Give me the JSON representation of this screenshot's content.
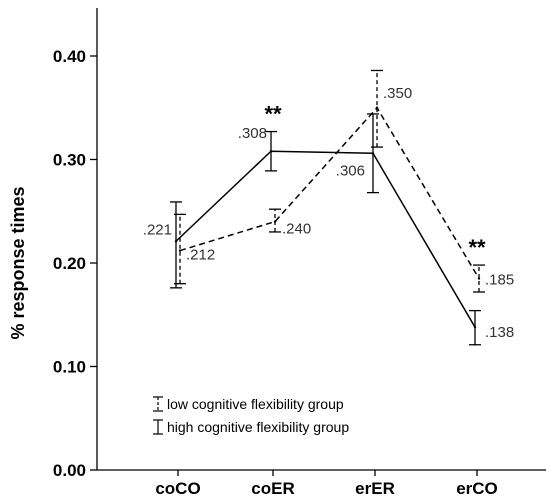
{
  "chart_data": {
    "type": "line",
    "title": "",
    "xlabel": "",
    "ylabel": "% response times",
    "categories": [
      "coCO",
      "coER",
      "erER",
      "erCO"
    ],
    "ylim": [
      0.0,
      0.45
    ],
    "yticks": [
      "0.00",
      "0.10",
      "0.20",
      "0.30",
      "0.40"
    ],
    "ytick_values": [
      0.0,
      0.1,
      0.2,
      0.3,
      0.4
    ],
    "grid": false,
    "legend_position": "bottom-left",
    "series": [
      {
        "name": "low cognitive flexibility group",
        "line_style": "dashed",
        "values": [
          0.212,
          0.24,
          0.35,
          0.185
        ],
        "labels": [
          ".212",
          ".240",
          ".350",
          ".185"
        ],
        "error_low": [
          0.18,
          0.23,
          0.312,
          0.172
        ],
        "error_high": [
          0.247,
          0.252,
          0.386,
          0.198
        ]
      },
      {
        "name": "high cognitive flexibility group",
        "line_style": "solid",
        "values": [
          0.221,
          0.308,
          0.306,
          0.138
        ],
        "labels": [
          ".221",
          ".308",
          ".306",
          ".138"
        ],
        "error_low": [
          0.176,
          0.289,
          0.268,
          0.121
        ],
        "error_high": [
          0.259,
          0.327,
          0.344,
          0.154
        ]
      }
    ],
    "annotations": [
      {
        "category": "coER",
        "text": "**"
      },
      {
        "category": "erCO",
        "text": "**"
      }
    ]
  }
}
